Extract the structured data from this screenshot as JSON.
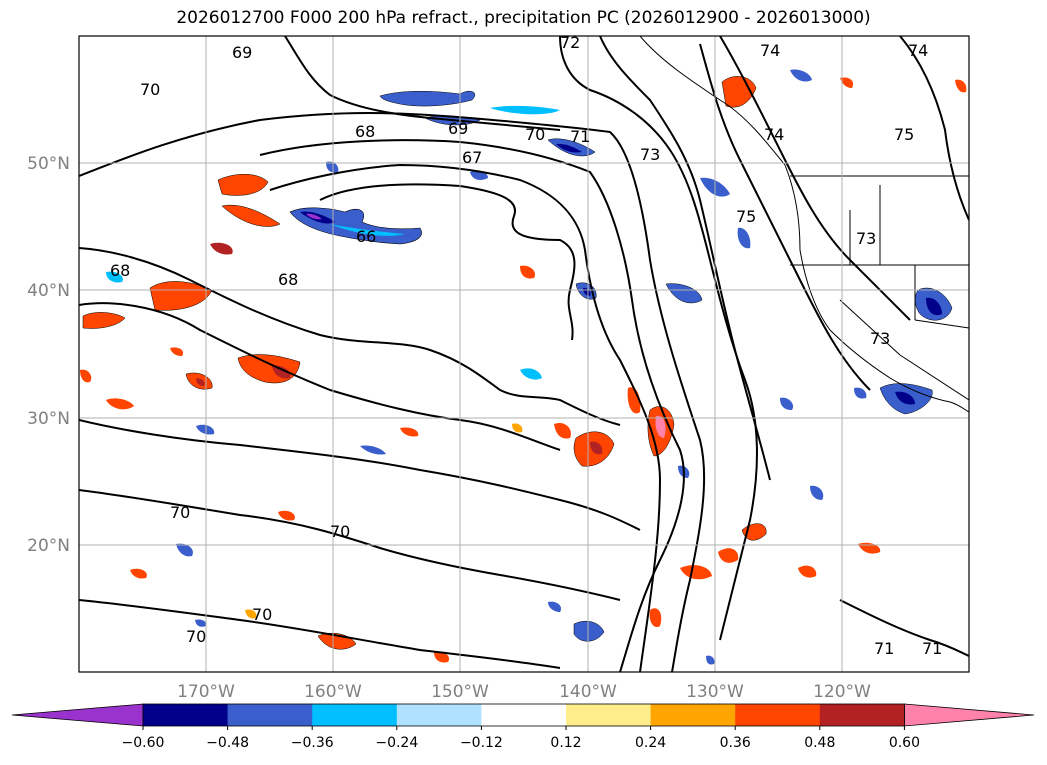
{
  "title": "2026012700 F000 200 hPa refract., precipitation PC (2026012900 - 2026013000)",
  "map": {
    "lon_min": -180,
    "lon_max": -110,
    "lat_min": 10,
    "lat_max": 60,
    "lon_ticks": [
      {
        "value": -170,
        "label": "170°W"
      },
      {
        "value": -160,
        "label": "160°W"
      },
      {
        "value": -150,
        "label": "150°W"
      },
      {
        "value": -140,
        "label": "140°W"
      },
      {
        "value": -130,
        "label": "130°W"
      },
      {
        "value": -120,
        "label": "120°W"
      }
    ],
    "lat_ticks": [
      {
        "value": 20,
        "label": "20°N"
      },
      {
        "value": 30,
        "label": "30°N"
      },
      {
        "value": 40,
        "label": "40°N"
      },
      {
        "value": 50,
        "label": "50°N"
      }
    ],
    "contour_labels": [
      "66",
      "67",
      "68",
      "69",
      "70",
      "71",
      "72",
      "73",
      "74",
      "75"
    ],
    "grid": true
  },
  "colorbar": {
    "ticks": [
      "−0.60",
      "−0.48",
      "−0.36",
      "−0.24",
      "−0.12",
      "0.12",
      "0.24",
      "0.36",
      "0.48",
      "0.60"
    ],
    "colors": [
      "#9a32cd",
      "#00008b",
      "#3a5fcd",
      "#00bfff",
      "#b0e2ff",
      "#ffffff",
      "#ffec8b",
      "#ffa500",
      "#ff4500",
      "#b22222",
      "#ff82ab"
    ]
  }
}
